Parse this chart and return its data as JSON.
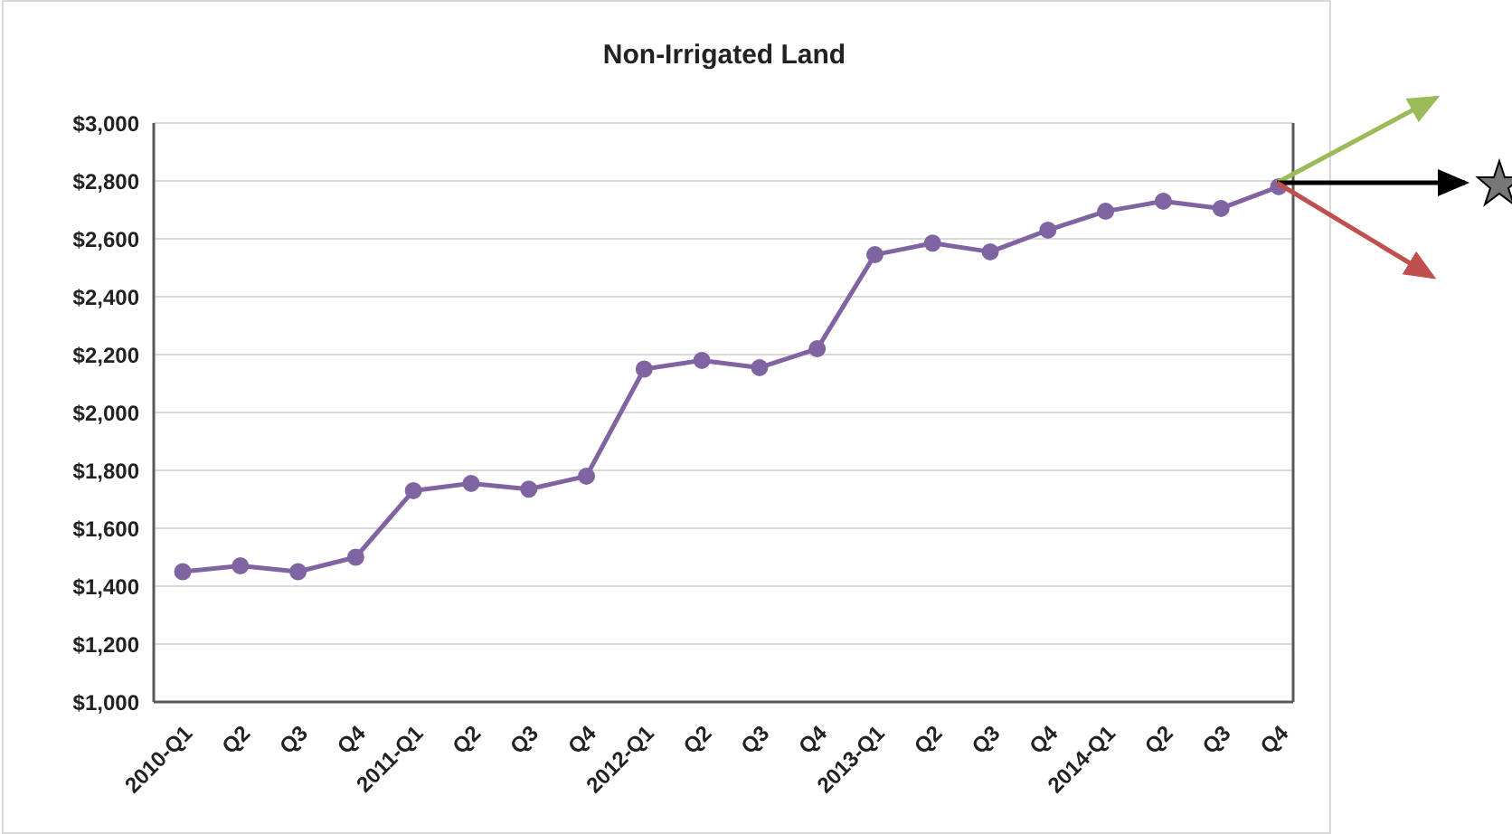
{
  "chart_data": {
    "type": "line",
    "title": "Non-Irrigated Land",
    "categories": [
      "2010-Q1",
      "Q2",
      "Q3",
      "Q4",
      "2011-Q1",
      "Q2",
      "Q3",
      "Q4",
      "2012-Q1",
      "Q2",
      "Q3",
      "Q4",
      "2013-Q1",
      "Q2",
      "Q3",
      "Q4",
      "2014-Q1",
      "Q2",
      "Q3",
      "Q4"
    ],
    "series": [
      {
        "color": "#8064a2",
        "values": [
          1450,
          1470,
          1450,
          1500,
          1730,
          1755,
          1735,
          1780,
          2150,
          2180,
          2155,
          2220,
          2545,
          2585,
          2555,
          2630,
          2695,
          2730,
          2705,
          2780
        ]
      }
    ],
    "ylim": [
      1000,
      3000
    ],
    "yticks": [
      {
        "value": 1000,
        "label": "$1,000"
      },
      {
        "value": 1200,
        "label": "$1,200"
      },
      {
        "value": 1400,
        "label": "$1,400"
      },
      {
        "value": 1600,
        "label": "$1,600"
      },
      {
        "value": 1800,
        "label": "$1,800"
      },
      {
        "value": 2000,
        "label": "$2,000"
      },
      {
        "value": 2200,
        "label": "$2,200"
      },
      {
        "value": 2400,
        "label": "$2,400"
      },
      {
        "value": 2600,
        "label": "$2,600"
      },
      {
        "value": 2800,
        "label": "$2,800"
      },
      {
        "value": 3000,
        "label": "$3,000"
      }
    ],
    "grid": "y",
    "marker": "circle",
    "line_style": "solid"
  }
}
